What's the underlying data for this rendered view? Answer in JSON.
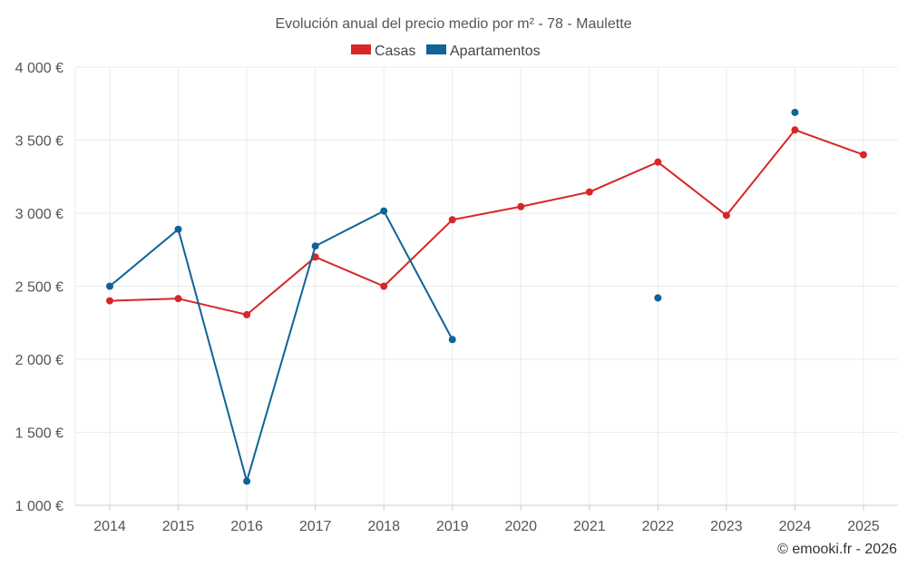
{
  "chart_data": {
    "type": "line",
    "title": "Evolución anual del precio medio por m² - 78 - Maulette",
    "xlabel": "",
    "ylabel": "",
    "categories": [
      "2014",
      "2015",
      "2016",
      "2017",
      "2018",
      "2019",
      "2020",
      "2021",
      "2022",
      "2023",
      "2024",
      "2025"
    ],
    "ylim": [
      1000,
      4000
    ],
    "yticks": [
      1000,
      1500,
      2000,
      2500,
      3000,
      3500,
      4000
    ],
    "ytick_labels": [
      "1 000 €",
      "1 500 €",
      "2 000 €",
      "2 500 €",
      "3 000 €",
      "3 500 €",
      "4 000 €"
    ],
    "grid": true,
    "legend_position": "top-center",
    "series": [
      {
        "name": "Casas",
        "color": "#d62728",
        "values": [
          2400,
          2415,
          2305,
          2700,
          2500,
          2955,
          3045,
          3145,
          3350,
          2985,
          3570,
          3400
        ]
      },
      {
        "name": "Apartamentos",
        "color": "#0f6398",
        "values": [
          2500,
          2890,
          1165,
          2775,
          3015,
          2135,
          null,
          null,
          2420,
          null,
          3690,
          null
        ]
      }
    ]
  },
  "credit": "© emooki.fr - 2026"
}
